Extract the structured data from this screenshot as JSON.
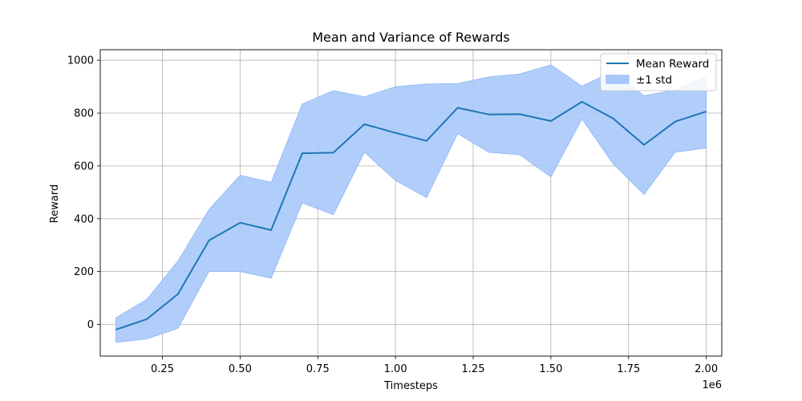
{
  "chart_data": {
    "type": "line",
    "title": "Mean and Variance of Rewards",
    "xlabel": "Timesteps",
    "ylabel": "Reward",
    "x_offset_label": "1e6",
    "xlim": [
      0.05,
      2.05
    ],
    "ylim": [
      -120,
      1040
    ],
    "x_ticks": [
      0.25,
      0.5,
      0.75,
      1.0,
      1.25,
      1.5,
      1.75,
      2.0
    ],
    "x_tick_labels": [
      "0.25",
      "0.50",
      "0.75",
      "1.00",
      "1.25",
      "1.50",
      "1.75",
      "2.00"
    ],
    "y_ticks": [
      0,
      200,
      400,
      600,
      800,
      1000
    ],
    "y_tick_labels": [
      "0",
      "200",
      "400",
      "600",
      "800",
      "1000"
    ],
    "grid": true,
    "legend_position": "top-right",
    "x": [
      0.1,
      0.2,
      0.3,
      0.4,
      0.5,
      0.6,
      0.7,
      0.8,
      0.9,
      1.0,
      1.1,
      1.2,
      1.3,
      1.4,
      1.5,
      1.6,
      1.7,
      1.8,
      1.9,
      2.0
    ],
    "series": [
      {
        "name": "Mean Reward",
        "color": "#1f77b4",
        "values": [
          -20,
          20,
          115,
          318,
          385,
          357,
          648,
          650,
          758,
          725,
          695,
          820,
          795,
          796,
          770,
          843,
          780,
          680,
          768,
          806
        ]
      },
      {
        "name": "±1 std",
        "kind": "band",
        "color": "#a9c9fb",
        "upper": [
          25,
          95,
          240,
          435,
          565,
          538,
          835,
          885,
          862,
          900,
          910,
          912,
          937,
          948,
          983,
          902,
          958,
          866,
          888,
          940
        ],
        "lower": [
          -68,
          -55,
          -15,
          200,
          200,
          175,
          460,
          415,
          652,
          545,
          480,
          722,
          652,
          642,
          558,
          778,
          608,
          492,
          652,
          668
        ]
      }
    ]
  }
}
